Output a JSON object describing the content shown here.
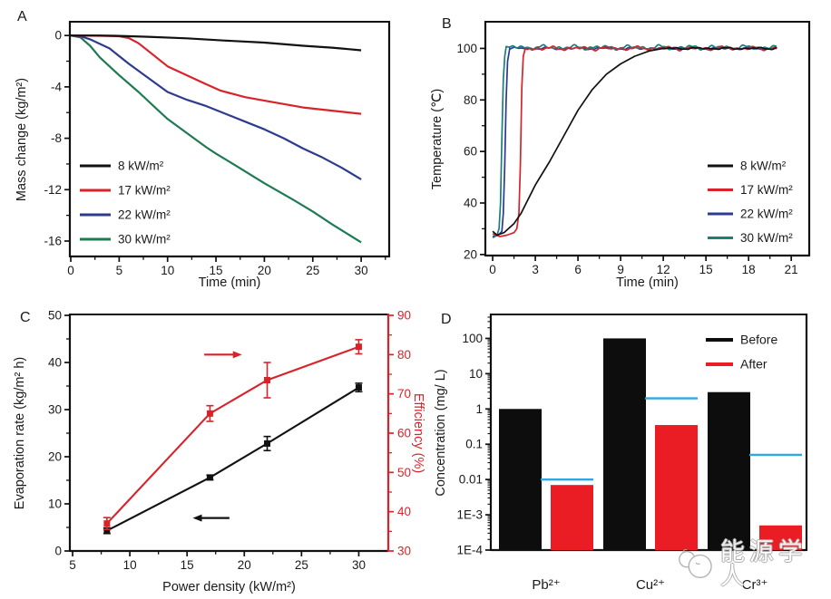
{
  "watermark": {
    "text": "能源学人",
    "mascot_icon": "mascot-icon"
  },
  "chart_data": [
    {
      "id": "A",
      "panel_label": "A",
      "type": "line",
      "xlabel": "Time (min)",
      "ylabel": "Mass change (kg/m²)",
      "xlim": [
        0,
        32.8
      ],
      "ylim": [
        -17.2,
        1
      ],
      "xticks": [
        0,
        5,
        10,
        15,
        20,
        25,
        30
      ],
      "x_minor_step": 2.5,
      "yticks": [
        0,
        -4,
        -8,
        -12,
        -16
      ],
      "y_minor_step": 2,
      "grid": false,
      "legend_position": "lower-left",
      "series": [
        {
          "name": "8 kW/m²",
          "color": "#111111",
          "zorder": 4,
          "points": [
            [
              0,
              0
            ],
            [
              3,
              0
            ],
            [
              5,
              -0.03
            ],
            [
              8,
              -0.1
            ],
            [
              12,
              -0.22
            ],
            [
              16,
              -0.4
            ],
            [
              20,
              -0.55
            ],
            [
              24,
              -0.8
            ],
            [
              27,
              -0.95
            ],
            [
              30,
              -1.15
            ]
          ]
        },
        {
          "name": "17 kW/m²",
          "color": "#d8232a",
          "zorder": 3,
          "points": [
            [
              0,
              0
            ],
            [
              3,
              -0.02
            ],
            [
              5,
              -0.06
            ],
            [
              6,
              -0.2
            ],
            [
              7,
              -0.6
            ],
            [
              8,
              -1.2
            ],
            [
              10,
              -2.4
            ],
            [
              12,
              -3.1
            ],
            [
              14,
              -3.8
            ],
            [
              15.5,
              -4.3
            ],
            [
              18,
              -4.8
            ],
            [
              21,
              -5.2
            ],
            [
              24,
              -5.6
            ],
            [
              27,
              -5.85
            ],
            [
              30,
              -6.1
            ]
          ]
        },
        {
          "name": "22 kW/m²",
          "color": "#2c3b8f",
          "zorder": 2,
          "points": [
            [
              0,
              0
            ],
            [
              1,
              -0.05
            ],
            [
              2,
              -0.3
            ],
            [
              4,
              -1.0
            ],
            [
              6,
              -2.2
            ],
            [
              8,
              -3.3
            ],
            [
              10,
              -4.4
            ],
            [
              12,
              -5.0
            ],
            [
              14,
              -5.5
            ],
            [
              16,
              -6.1
            ],
            [
              18,
              -6.7
            ],
            [
              20,
              -7.3
            ],
            [
              22,
              -8.0
            ],
            [
              24,
              -8.8
            ],
            [
              26,
              -9.5
            ],
            [
              28,
              -10.3
            ],
            [
              30,
              -11.2
            ]
          ]
        },
        {
          "name": "30 kW/m²",
          "color": "#1d7b52",
          "zorder": 1,
          "points": [
            [
              0,
              0
            ],
            [
              1,
              -0.15
            ],
            [
              2,
              -0.8
            ],
            [
              3,
              -1.7
            ],
            [
              4,
              -2.4
            ],
            [
              5,
              -3.1
            ],
            [
              7,
              -4.4
            ],
            [
              9,
              -5.8
            ],
            [
              10,
              -6.5
            ],
            [
              12,
              -7.6
            ],
            [
              14,
              -8.7
            ],
            [
              15,
              -9.2
            ],
            [
              17,
              -10.1
            ],
            [
              20,
              -11.5
            ],
            [
              23,
              -12.8
            ],
            [
              25,
              -13.7
            ],
            [
              27,
              -14.7
            ],
            [
              30,
              -16.1
            ]
          ]
        }
      ]
    },
    {
      "id": "B",
      "panel_label": "B",
      "type": "line",
      "xlabel": "Time (min)",
      "ylabel": "Temperature (℃)",
      "xlim": [
        -0.45,
        22.2
      ],
      "ylim": [
        19.6,
        110
      ],
      "xticks": [
        0,
        3,
        6,
        9,
        12,
        15,
        18,
        21
      ],
      "x_minor_step": 1.5,
      "yticks": [
        20,
        40,
        60,
        80,
        100
      ],
      "y_minor_step": 10,
      "grid": false,
      "legend_position": "middle-right",
      "series": [
        {
          "name": "8 kW/m²",
          "color": "#111111",
          "zorder": 4,
          "plateau": {
            "from": 12,
            "to": 20,
            "level": 100,
            "amp": 0.45,
            "seed": 1
          },
          "points": [
            [
              0,
              29
            ],
            [
              0.3,
              27.5
            ],
            [
              0.8,
              28.5
            ],
            [
              1.5,
              32
            ],
            [
              2,
              36
            ],
            [
              3,
              47
            ],
            [
              4,
              56
            ],
            [
              5,
              66
            ],
            [
              6,
              76
            ],
            [
              7,
              84
            ],
            [
              8,
              90
            ],
            [
              9,
              94
            ],
            [
              10,
              97
            ],
            [
              11,
              99
            ],
            [
              12,
              100
            ]
          ]
        },
        {
          "name": "17 kW/m²",
          "color": "#d8232a",
          "zorder": 3,
          "plateau": {
            "from": 2.3,
            "to": 20,
            "level": 100,
            "amp": 0.85,
            "seed": 2
          },
          "points": [
            [
              0,
              28
            ],
            [
              0.5,
              27
            ],
            [
              1,
              27.5
            ],
            [
              1.5,
              28.5
            ],
            [
              1.7,
              30
            ],
            [
              1.85,
              36
            ],
            [
              1.95,
              55
            ],
            [
              2.05,
              85
            ],
            [
              2.15,
              97
            ],
            [
              2.3,
              100
            ]
          ]
        },
        {
          "name": "22 kW/m²",
          "color": "#2c3b8f",
          "zorder": 1,
          "plateau": {
            "from": 1.2,
            "to": 20,
            "level": 100,
            "amp": 0.5,
            "seed": 3
          },
          "points": [
            [
              0,
              27
            ],
            [
              0.4,
              27.5
            ],
            [
              0.65,
              29
            ],
            [
              0.75,
              36
            ],
            [
              0.85,
              55
            ],
            [
              0.95,
              80
            ],
            [
              1.05,
              95
            ],
            [
              1.2,
              100
            ]
          ]
        },
        {
          "name": "30 kW/m²",
          "color": "#17807a",
          "zorder": 2,
          "plateau": {
            "from": 0.95,
            "to": 20,
            "level": 100.4,
            "amp": 1.0,
            "seed": 4
          },
          "points": [
            [
              0,
              26.5
            ],
            [
              0.3,
              27.5
            ],
            [
              0.45,
              30
            ],
            [
              0.55,
              40
            ],
            [
              0.65,
              65
            ],
            [
              0.75,
              88
            ],
            [
              0.85,
              97
            ],
            [
              0.95,
              100.4
            ]
          ]
        }
      ]
    },
    {
      "id": "C",
      "panel_label": "C",
      "type": "line-errorbar",
      "xlabel": "Power density (kW/m²)",
      "ylabel_left": "Evaporation rate (kg/m² h)",
      "ylabel_right": "Efficiency (%)",
      "xlim": [
        4.84,
        32.5
      ],
      "ylim_left": [
        0,
        50
      ],
      "ylim_right": [
        30,
        90
      ],
      "xticks": [
        5,
        10,
        15,
        20,
        25,
        30
      ],
      "x_minor_step": 2.5,
      "yticks_left": [
        0,
        10,
        20,
        30,
        40,
        50
      ],
      "y_minor_left": 5,
      "yticks_right": [
        30,
        40,
        50,
        60,
        70,
        80,
        90
      ],
      "y_minor_right": 5,
      "grid": false,
      "series": [
        {
          "name": "Evaporation rate",
          "axis": "left",
          "color": "#111111",
          "marker": "square",
          "x": [
            8,
            17,
            22,
            30
          ],
          "y": [
            4.3,
            15.6,
            22.8,
            34.7
          ],
          "yerr": [
            0.6,
            0.5,
            1.5,
            0.9
          ]
        },
        {
          "name": "Efficiency",
          "axis": "right",
          "color": "#d8232a",
          "marker": "square",
          "x": [
            8,
            17,
            22,
            30
          ],
          "y": [
            37,
            65,
            73.5,
            82
          ],
          "yerr": [
            1.5,
            2,
            4.5,
            1.8
          ]
        }
      ],
      "annotations": [
        {
          "type": "arrow",
          "dir": "right",
          "axis": "right",
          "color": "#d8232a",
          "x1": 16.5,
          "x2": 19.8,
          "y": 80
        },
        {
          "type": "arrow",
          "dir": "left",
          "axis": "left",
          "color": "#111111",
          "x1": 18.7,
          "x2": 15.5,
          "y": 7
        }
      ]
    },
    {
      "id": "D",
      "panel_label": "D",
      "type": "bar-log",
      "ylabel": "Concentration (mg/ L)",
      "ylim": [
        0.0001,
        450
      ],
      "yticks": [
        {
          "v": 100,
          "t": "100"
        },
        {
          "v": 10,
          "t": "10"
        },
        {
          "v": 1,
          "t": "1"
        },
        {
          "v": 0.1,
          "t": "0.1"
        },
        {
          "v": 0.01,
          "t": "0.01"
        },
        {
          "v": 0.001,
          "t": "1E-3"
        },
        {
          "v": 0.0001,
          "t": "1E-4"
        }
      ],
      "categories": [
        "Pb²⁺",
        "Cu²⁺",
        "Cr³⁺"
      ],
      "series": [
        {
          "name": "Before",
          "color": "#0d0d0d",
          "values": [
            1,
            100,
            3
          ]
        },
        {
          "name": "After",
          "color": "#ea1d24",
          "values": [
            0.007,
            0.35,
            0.0005
          ]
        }
      ],
      "limit_lines": {
        "color": "#2ea8e0",
        "values": [
          0.01,
          2,
          0.05
        ]
      },
      "legend_position": "top-right"
    }
  ]
}
